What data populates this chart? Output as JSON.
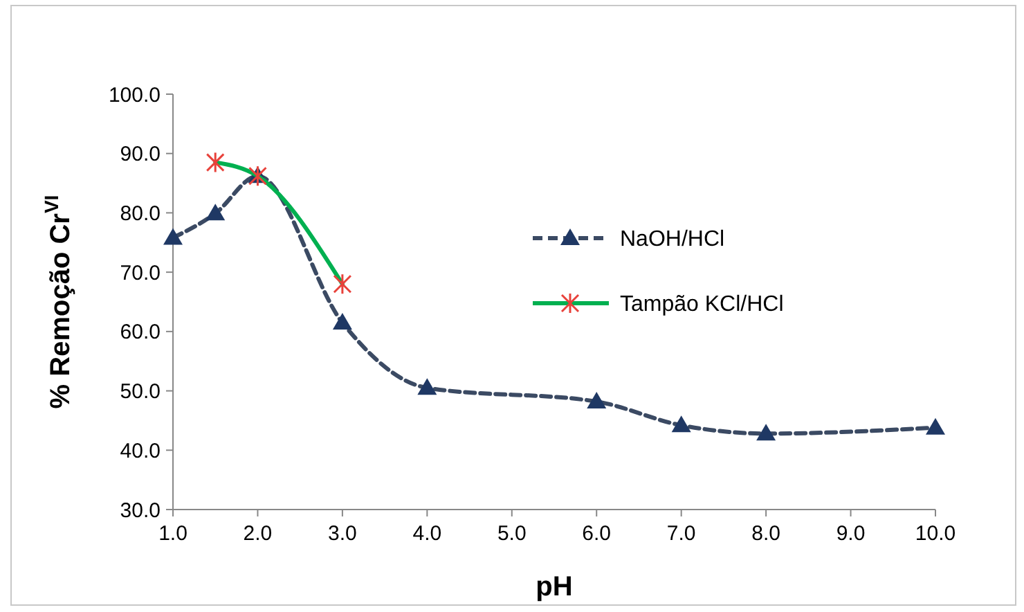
{
  "chart_data": {
    "type": "line",
    "xlabel": "pH",
    "ylabel": "% Remoção Cr$^{VI}$",
    "xlim": [
      1,
      10
    ],
    "xticks": [
      {
        "value": 1,
        "label": "1.0"
      },
      {
        "value": 2,
        "label": "2.0"
      },
      {
        "value": 3,
        "label": "3.0"
      },
      {
        "value": 4,
        "label": "4.0"
      },
      {
        "value": 5,
        "label": "5.0"
      },
      {
        "value": 6,
        "label": "6.0"
      },
      {
        "value": 7,
        "label": "7.0"
      },
      {
        "value": 8,
        "label": "8.0"
      },
      {
        "value": 9,
        "label": "9.0"
      },
      {
        "value": 10,
        "label": "10.0"
      }
    ],
    "ylim": [
      30,
      100
    ],
    "yticks": [
      {
        "value": 30,
        "label": "30.0"
      },
      {
        "value": 40,
        "label": "40.0"
      },
      {
        "value": 50,
        "label": "50.0"
      },
      {
        "value": 60,
        "label": "60.0"
      },
      {
        "value": 70,
        "label": "70.0"
      },
      {
        "value": 80,
        "label": "80.0"
      },
      {
        "value": 90,
        "label": "90.0"
      },
      {
        "value": 100,
        "label": "100.0"
      }
    ],
    "grid": false,
    "legend": "right",
    "series": [
      {
        "name": "NaOH/HCl",
        "color": "#3b4a63",
        "marker": "triangle",
        "line_style": "dashed",
        "x": [
          1,
          1.5,
          2,
          3,
          4,
          6,
          7,
          8,
          10
        ],
        "values": [
          75.8,
          79.9,
          86.2,
          61.5,
          50.5,
          48.2,
          44.2,
          42.8,
          43.8
        ]
      },
      {
        "name": "Tampão KCl/HCl",
        "color": "#00b050",
        "marker": "cross",
        "line_style": "solid",
        "x": [
          1.5,
          2,
          3
        ],
        "values": [
          88.5,
          86.2,
          68.0
        ]
      }
    ]
  }
}
